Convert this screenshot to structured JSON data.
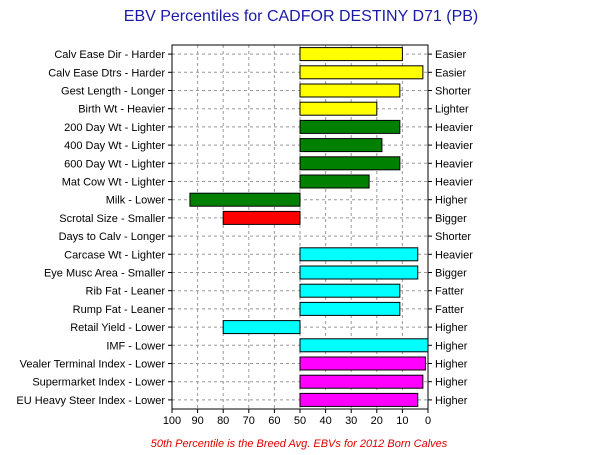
{
  "chart_data": {
    "type": "bar",
    "orientation": "horizontal",
    "title": "EBV Percentiles for CADFOR DESTINY D71 (PB)",
    "footnote": "50th Percentile is the Breed Avg. EBVs for 2012 Born Calves",
    "xlim": [
      100,
      0
    ],
    "baseline": 50,
    "x_ticks": [
      100,
      90,
      80,
      70,
      60,
      50,
      40,
      30,
      20,
      10,
      0
    ],
    "grid": true,
    "rows": [
      {
        "left": "Calv Ease Dir - Harder",
        "right": "Easier",
        "value": 10,
        "color": "#ffff00"
      },
      {
        "left": "Calv Ease Dtrs - Harder",
        "right": "Easier",
        "value": 2,
        "color": "#ffff00"
      },
      {
        "left": "Gest Length - Longer",
        "right": "Shorter",
        "value": 11,
        "color": "#ffff00"
      },
      {
        "left": "Birth Wt - Heavier",
        "right": "Lighter",
        "value": 20,
        "color": "#ffff00"
      },
      {
        "left": "200 Day Wt - Lighter",
        "right": "Heavier",
        "value": 11,
        "color": "#008000"
      },
      {
        "left": "400 Day Wt - Lighter",
        "right": "Heavier",
        "value": 18,
        "color": "#008000"
      },
      {
        "left": "600 Day Wt - Lighter",
        "right": "Heavier",
        "value": 11,
        "color": "#008000"
      },
      {
        "left": "Mat Cow Wt - Lighter",
        "right": "Heavier",
        "value": 23,
        "color": "#008000"
      },
      {
        "left": "Milk - Lower",
        "right": "Higher",
        "value": 93,
        "color": "#008000"
      },
      {
        "left": "Scrotal Size - Smaller",
        "right": "Bigger",
        "value": 80,
        "color": "#ff0000"
      },
      {
        "left": "Days to Calv - Longer",
        "right": "Shorter",
        "value": null,
        "color": "#ff0000"
      },
      {
        "left": "Carcase Wt - Lighter",
        "right": "Heavier",
        "value": 4,
        "color": "#00ffff"
      },
      {
        "left": "Eye Musc Area - Smaller",
        "right": "Bigger",
        "value": 4,
        "color": "#00ffff"
      },
      {
        "left": "Rib Fat - Leaner",
        "right": "Fatter",
        "value": 11,
        "color": "#00ffff"
      },
      {
        "left": "Rump Fat - Leaner",
        "right": "Fatter",
        "value": 11,
        "color": "#00ffff"
      },
      {
        "left": "Retail Yield - Lower",
        "right": "Higher",
        "value": 80,
        "color": "#00ffff"
      },
      {
        "left": "IMF - Lower",
        "right": "Higher",
        "value": 0,
        "color": "#00ffff"
      },
      {
        "left": "Vealer Terminal Index - Lower",
        "right": "Higher",
        "value": 1,
        "color": "#ff00ff"
      },
      {
        "left": "Supermarket Index - Lower",
        "right": "Higher",
        "value": 2,
        "color": "#ff00ff"
      },
      {
        "left": "EU Heavy Steer Index - Lower",
        "right": "Higher",
        "value": 4,
        "color": "#ff00ff"
      }
    ]
  }
}
